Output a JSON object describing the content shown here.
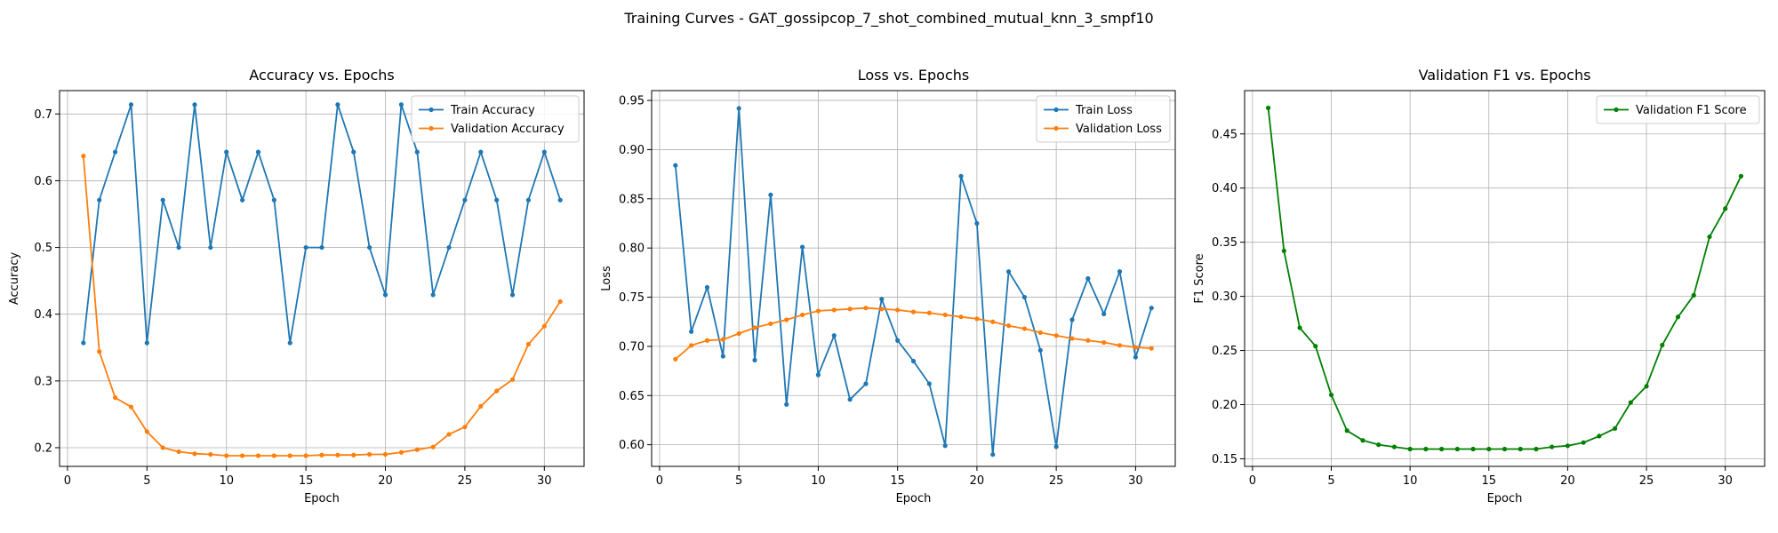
{
  "figure": {
    "suptitle": "Training Curves - GAT_gossipcop_7_shot_combined_mutual_knn_3_smpf10"
  },
  "chart_data": [
    {
      "type": "line",
      "title": "Accuracy vs. Epochs",
      "xlabel": "Epoch",
      "ylabel": "Accuracy",
      "xlim": [
        -0.5,
        32.5
      ],
      "ylim": [
        0.172,
        0.735
      ],
      "xticks": [
        0,
        5,
        10,
        15,
        20,
        25,
        30
      ],
      "yticks": [
        0.2,
        0.3,
        0.4,
        0.5,
        0.6,
        0.7
      ],
      "ytick_labels": [
        "0.2",
        "0.3",
        "0.4",
        "0.5",
        "0.6",
        "0.7"
      ],
      "grid": true,
      "legend_position": "top-right",
      "x": [
        1,
        2,
        3,
        4,
        5,
        6,
        7,
        8,
        9,
        10,
        11,
        12,
        13,
        14,
        15,
        16,
        17,
        18,
        19,
        20,
        21,
        22,
        23,
        24,
        25,
        26,
        27,
        28,
        29,
        30,
        31
      ],
      "series": [
        {
          "name": "Train Accuracy",
          "color": "#1f77b4",
          "values": [
            0.357,
            0.571,
            0.643,
            0.714,
            0.357,
            0.571,
            0.5,
            0.714,
            0.5,
            0.643,
            0.571,
            0.643,
            0.571,
            0.357,
            0.5,
            0.5,
            0.714,
            0.643,
            0.5,
            0.429,
            0.714,
            0.643,
            0.429,
            0.5,
            0.571,
            0.643,
            0.571,
            0.429,
            0.571,
            0.643,
            0.571
          ]
        },
        {
          "name": "Validation Accuracy",
          "color": "#ff7f0e",
          "values": [
            0.637,
            0.344,
            0.275,
            0.261,
            0.224,
            0.2,
            0.194,
            0.191,
            0.19,
            0.188,
            0.188,
            0.188,
            0.188,
            0.188,
            0.188,
            0.189,
            0.189,
            0.189,
            0.19,
            0.19,
            0.193,
            0.197,
            0.201,
            0.22,
            0.231,
            0.262,
            0.285,
            0.302,
            0.355,
            0.382,
            0.419
          ]
        }
      ]
    },
    {
      "type": "line",
      "title": "Loss vs. Epochs",
      "xlabel": "Epoch",
      "ylabel": "Loss",
      "xlim": [
        -0.5,
        32.5
      ],
      "ylim": [
        0.578,
        0.96
      ],
      "xticks": [
        0,
        5,
        10,
        15,
        20,
        25,
        30
      ],
      "yticks": [
        0.6,
        0.65,
        0.7,
        0.75,
        0.8,
        0.85,
        0.9,
        0.95
      ],
      "ytick_labels": [
        "0.60",
        "0.65",
        "0.70",
        "0.75",
        "0.80",
        "0.85",
        "0.90",
        "0.95"
      ],
      "grid": true,
      "legend_position": "top-right",
      "x": [
        1,
        2,
        3,
        4,
        5,
        6,
        7,
        8,
        9,
        10,
        11,
        12,
        13,
        14,
        15,
        16,
        17,
        18,
        19,
        20,
        21,
        22,
        23,
        24,
        25,
        26,
        27,
        28,
        29,
        30,
        31
      ],
      "series": [
        {
          "name": "Train Loss",
          "color": "#1f77b4",
          "values": [
            0.884,
            0.715,
            0.76,
            0.69,
            0.942,
            0.686,
            0.854,
            0.641,
            0.801,
            0.671,
            0.711,
            0.646,
            0.662,
            0.748,
            0.706,
            0.685,
            0.662,
            0.599,
            0.873,
            0.825,
            0.59,
            0.776,
            0.75,
            0.696,
            0.598,
            0.727,
            0.769,
            0.733,
            0.776,
            0.689,
            0.739
          ]
        },
        {
          "name": "Validation Loss",
          "color": "#ff7f0e",
          "values": [
            0.687,
            0.701,
            0.706,
            0.707,
            0.713,
            0.719,
            0.723,
            0.727,
            0.732,
            0.736,
            0.737,
            0.738,
            0.739,
            0.738,
            0.737,
            0.735,
            0.734,
            0.732,
            0.73,
            0.728,
            0.725,
            0.721,
            0.718,
            0.714,
            0.711,
            0.708,
            0.706,
            0.704,
            0.701,
            0.699,
            0.698
          ]
        }
      ]
    },
    {
      "type": "line",
      "title": "Validation F1 vs. Epochs",
      "xlabel": "Epoch",
      "ylabel": "F1 Score",
      "xlim": [
        -0.5,
        32.5
      ],
      "ylim": [
        0.143,
        0.49
      ],
      "xticks": [
        0,
        5,
        10,
        15,
        20,
        25,
        30
      ],
      "yticks": [
        0.15,
        0.2,
        0.25,
        0.3,
        0.35,
        0.4,
        0.45
      ],
      "ytick_labels": [
        "0.15",
        "0.20",
        "0.25",
        "0.30",
        "0.35",
        "0.40",
        "0.45"
      ],
      "grid": true,
      "legend_position": "top-right",
      "x": [
        1,
        2,
        3,
        4,
        5,
        6,
        7,
        8,
        9,
        10,
        11,
        12,
        13,
        14,
        15,
        16,
        17,
        18,
        19,
        20,
        21,
        22,
        23,
        24,
        25,
        26,
        27,
        28,
        29,
        30,
        31
      ],
      "series": [
        {
          "name": "Validation F1 Score",
          "color": "#008000",
          "values": [
            0.474,
            0.342,
            0.271,
            0.254,
            0.209,
            0.176,
            0.167,
            0.163,
            0.161,
            0.159,
            0.159,
            0.159,
            0.159,
            0.159,
            0.159,
            0.159,
            0.159,
            0.159,
            0.161,
            0.162,
            0.165,
            0.171,
            0.178,
            0.202,
            0.217,
            0.255,
            0.281,
            0.301,
            0.355,
            0.381,
            0.411
          ]
        }
      ]
    }
  ]
}
